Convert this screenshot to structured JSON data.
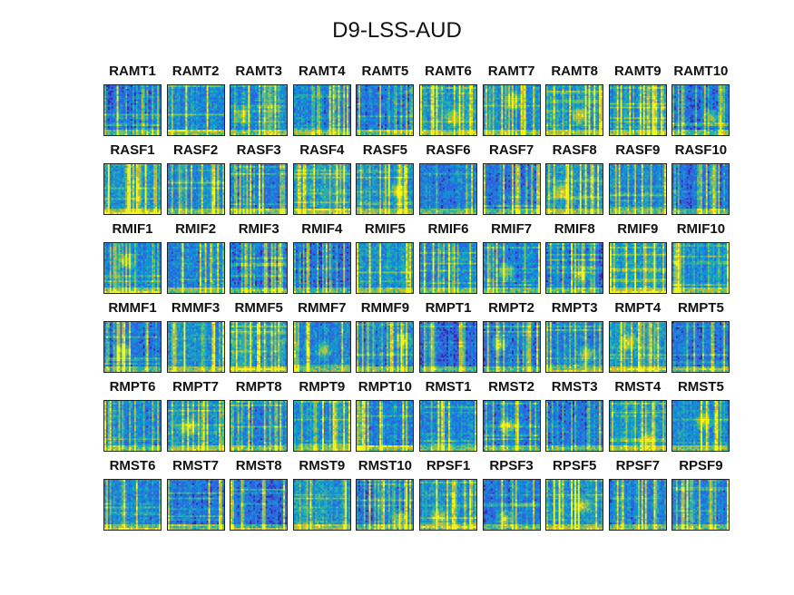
{
  "chart_data": {
    "type": "heatmap",
    "title": "D9-LSS-AUD",
    "layout": {
      "rows": 6,
      "cols": 10
    },
    "colormap": [
      "#3e26a8",
      "#2f64e3",
      "#1193d5",
      "#2ab2aa",
      "#74c767",
      "#d1c034",
      "#f9fb15"
    ],
    "panels": [
      "RAMT1",
      "RAMT2",
      "RAMT3",
      "RAMT4",
      "RAMT5",
      "RAMT6",
      "RAMT7",
      "RAMT8",
      "RAMT9",
      "RAMT10",
      "RASF1",
      "RASF2",
      "RASF3",
      "RASF4",
      "RASF5",
      "RASF6",
      "RASF7",
      "RASF8",
      "RASF9",
      "RASF10",
      "RMIF1",
      "RMIF2",
      "RMIF3",
      "RMIF4",
      "RMIF5",
      "RMIF6",
      "RMIF7",
      "RMIF8",
      "RMIF9",
      "RMIF10",
      "RMMF1",
      "RMMF3",
      "RMMF5",
      "RMMF7",
      "RMMF9",
      "RMPT1",
      "RMPT2",
      "RMPT3",
      "RMPT4",
      "RMPT5",
      "RMPT6",
      "RMPT7",
      "RMPT8",
      "RMPT9",
      "RMPT10",
      "RMST1",
      "RMST2",
      "RMST3",
      "RMST4",
      "RMST5",
      "RMST6",
      "RMST7",
      "RMST8",
      "RMST9",
      "RMST10",
      "RPSF1",
      "RPSF3",
      "RPSF5",
      "RPSF7",
      "RPSF9"
    ]
  }
}
